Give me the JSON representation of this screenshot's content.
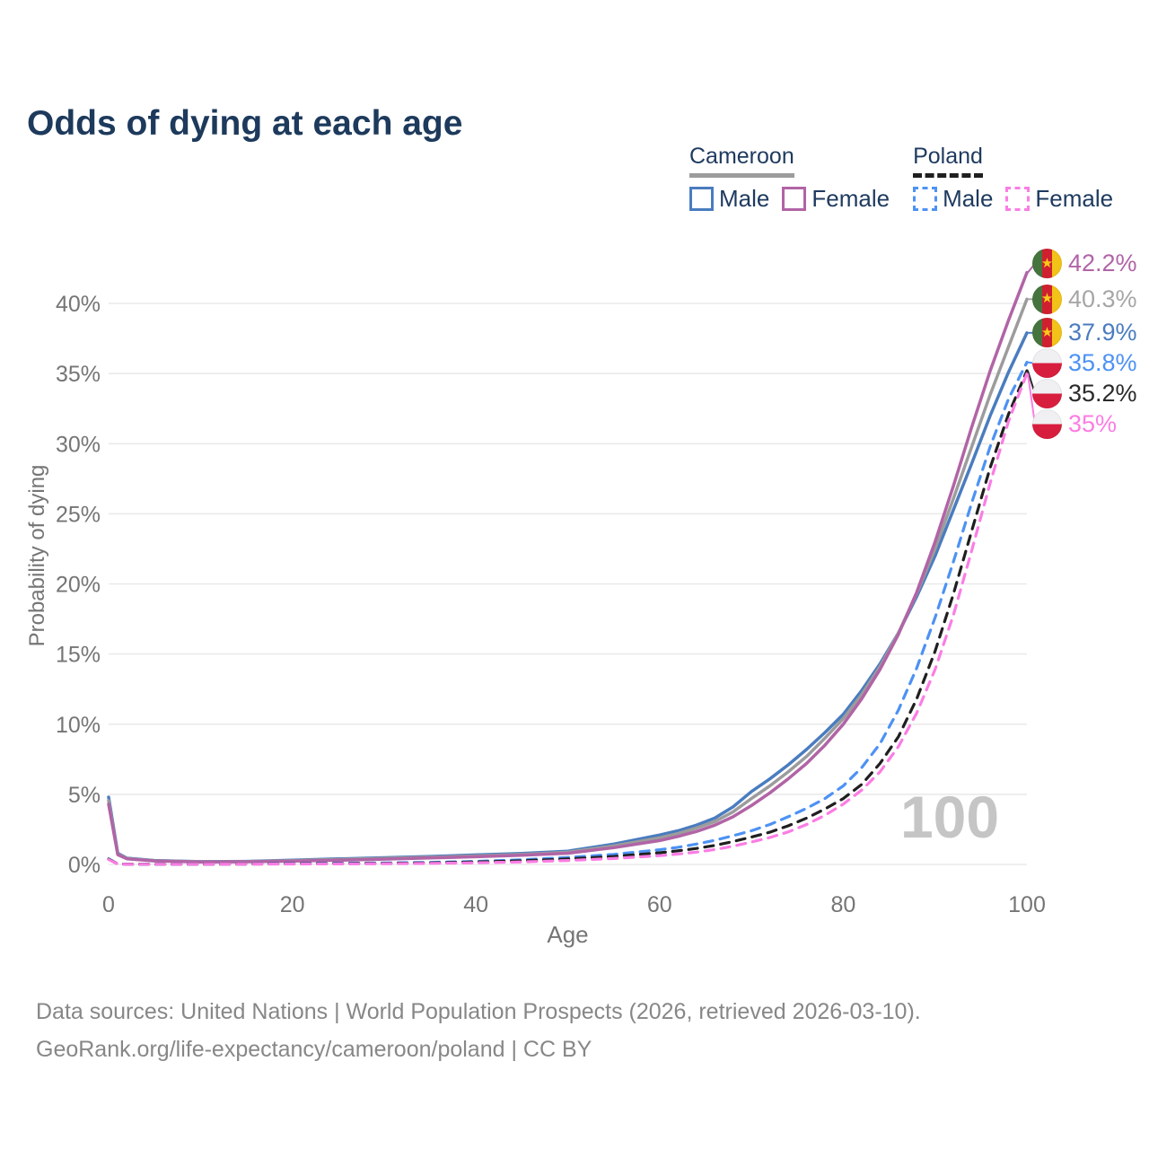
{
  "title": "Odds of dying at each age",
  "watermark": "100",
  "legend": {
    "groups": [
      {
        "country": "Cameroon",
        "line_style": "solid",
        "line_color": "#9c9c9c",
        "items": [
          {
            "label": "Male",
            "color": "#4a7cbf"
          },
          {
            "label": "Female",
            "color": "#b164a6"
          }
        ]
      },
      {
        "country": "Poland",
        "line_style": "dashed",
        "line_color": "#1f1f1f",
        "items": [
          {
            "label": "Male",
            "color": "#4d92f4"
          },
          {
            "label": "Female",
            "color": "#fb7de4"
          }
        ]
      }
    ]
  },
  "end_labels": [
    {
      "value_label": "42.2%",
      "value": 42.2,
      "color": "#b164a6",
      "flag": "cameroon"
    },
    {
      "value_label": "40.3%",
      "value": 40.3,
      "color": "#a6a6a6",
      "flag": "cameroon"
    },
    {
      "value_label": "37.9%",
      "value": 37.9,
      "color": "#4a7cbf",
      "flag": "cameroon"
    },
    {
      "value_label": "35.8%",
      "value": 35.8,
      "color": "#4d92f4",
      "flag": "poland"
    },
    {
      "value_label": "35.2%",
      "value": 35.2,
      "color": "#2a2a2a",
      "flag": "poland"
    },
    {
      "value_label": "35%",
      "value": 35.0,
      "color": "#fb7de4",
      "flag": "poland"
    }
  ],
  "chart_data": {
    "type": "line",
    "title": "Odds of dying at each age",
    "xlabel": "Age",
    "ylabel": "Probability of dying",
    "xlim": [
      0,
      100
    ],
    "ylim": [
      0,
      43
    ],
    "xticks": [
      0,
      20,
      40,
      60,
      80,
      100
    ],
    "yticks": [
      0,
      5,
      10,
      15,
      20,
      25,
      30,
      35,
      40
    ],
    "grid": "horizontal",
    "legend_position": "top-right",
    "x": [
      0,
      1,
      2,
      5,
      10,
      15,
      20,
      25,
      30,
      35,
      40,
      45,
      50,
      55,
      60,
      62,
      64,
      66,
      68,
      70,
      72,
      74,
      76,
      78,
      80,
      82,
      84,
      86,
      88,
      90,
      92,
      94,
      96,
      98,
      100
    ],
    "series": [
      {
        "name": "Cameroon Male",
        "country": "Cameroon",
        "sex": "male",
        "color": "#4a7cbf",
        "dash": "solid",
        "end_label": "37.9%",
        "values": [
          4.8,
          0.8,
          0.45,
          0.28,
          0.2,
          0.22,
          0.3,
          0.4,
          0.48,
          0.57,
          0.68,
          0.78,
          0.95,
          1.45,
          2.1,
          2.4,
          2.8,
          3.3,
          4.1,
          5.2,
          6.1,
          7.1,
          8.2,
          9.4,
          10.7,
          12.4,
          14.3,
          16.5,
          19.1,
          22.0,
          25.3,
          28.6,
          32.0,
          35.1,
          37.9
        ]
      },
      {
        "name": "Cameroon",
        "country": "Cameroon",
        "sex": "both",
        "color": "#9c9c9c",
        "dash": "solid",
        "end_label": "40.3%",
        "values": [
          4.55,
          0.75,
          0.42,
          0.26,
          0.19,
          0.2,
          0.27,
          0.35,
          0.43,
          0.51,
          0.61,
          0.71,
          0.87,
          1.32,
          1.9,
          2.2,
          2.6,
          3.05,
          3.75,
          4.7,
          5.6,
          6.6,
          7.7,
          9.0,
          10.4,
          12.1,
          14.1,
          16.5,
          19.3,
          22.5,
          26.1,
          29.8,
          33.5,
          36.9,
          40.3
        ]
      },
      {
        "name": "Cameroon Female",
        "country": "Cameroon",
        "sex": "female",
        "color": "#b164a6",
        "dash": "solid",
        "end_label": "42.2%",
        "values": [
          4.3,
          0.7,
          0.4,
          0.25,
          0.18,
          0.19,
          0.24,
          0.3,
          0.38,
          0.46,
          0.55,
          0.65,
          0.8,
          1.2,
          1.7,
          2.0,
          2.35,
          2.8,
          3.4,
          4.2,
          5.1,
          6.1,
          7.2,
          8.5,
          10.0,
          11.8,
          13.9,
          16.4,
          19.4,
          23.0,
          27.0,
          31.2,
          35.2,
          38.8,
          42.2
        ]
      },
      {
        "name": "Poland Male",
        "country": "Poland",
        "sex": "male",
        "color": "#4d92f4",
        "dash": "dashed",
        "end_label": "35.8%",
        "values": [
          0.4,
          0.03,
          0.02,
          0.01,
          0.01,
          0.03,
          0.07,
          0.09,
          0.11,
          0.15,
          0.22,
          0.33,
          0.5,
          0.72,
          1.05,
          1.22,
          1.45,
          1.72,
          2.05,
          2.4,
          2.85,
          3.4,
          4.0,
          4.7,
          5.6,
          6.9,
          8.6,
          11.0,
          14.0,
          17.6,
          21.6,
          25.8,
          29.8,
          33.2,
          35.8
        ]
      },
      {
        "name": "Poland",
        "country": "Poland",
        "sex": "both",
        "color": "#1f1f1f",
        "dash": "dashed",
        "end_label": "35.2%",
        "values": [
          0.38,
          0.03,
          0.02,
          0.01,
          0.01,
          0.025,
          0.05,
          0.065,
          0.08,
          0.11,
          0.17,
          0.26,
          0.39,
          0.57,
          0.83,
          0.97,
          1.14,
          1.36,
          1.63,
          1.95,
          2.3,
          2.75,
          3.3,
          3.95,
          4.7,
          5.7,
          7.2,
          9.1,
          11.8,
          15.2,
          19.3,
          23.8,
          28.3,
          32.1,
          35.2
        ]
      },
      {
        "name": "Poland Female",
        "country": "Poland",
        "sex": "female",
        "color": "#fb7de4",
        "dash": "dashed",
        "end_label": "35%",
        "values": [
          0.35,
          0.025,
          0.015,
          0.01,
          0.01,
          0.02,
          0.03,
          0.04,
          0.05,
          0.075,
          0.115,
          0.18,
          0.28,
          0.42,
          0.63,
          0.74,
          0.88,
          1.06,
          1.3,
          1.6,
          1.92,
          2.32,
          2.85,
          3.5,
          4.3,
          5.3,
          6.6,
          8.4,
          10.8,
          13.9,
          17.8,
          22.4,
          27.2,
          31.6,
          35.0
        ]
      }
    ]
  },
  "footer": {
    "line1": "Data sources: United Nations | World Population Prospects (2026, retrieved 2026-03-10).",
    "line2": "GeoRank.org/life-expectancy/cameroon/poland | CC BY"
  }
}
